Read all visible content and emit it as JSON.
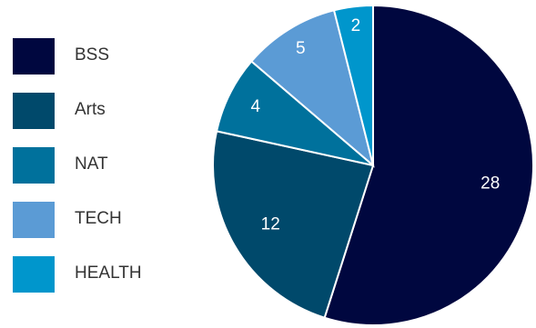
{
  "chart_data": {
    "type": "pie",
    "title": "",
    "legend_position": "left",
    "slices": [
      {
        "name": "BSS",
        "value": 28,
        "color": "#00073f"
      },
      {
        "name": "Arts",
        "value": 12,
        "color": "#00496b"
      },
      {
        "name": "NAT",
        "value": 4,
        "color": "#00719c"
      },
      {
        "name": "TECH",
        "value": 5,
        "color": "#5b9bd5"
      },
      {
        "name": "HEALTH",
        "value": 2,
        "color": "#0096cc"
      }
    ],
    "data_labels": [
      "28",
      "12",
      "4",
      "5",
      "2"
    ]
  },
  "legend": {
    "items": [
      {
        "label": "BSS"
      },
      {
        "label": "Arts"
      },
      {
        "label": "NAT"
      },
      {
        "label": "TECH"
      },
      {
        "label": "HEALTH"
      }
    ]
  }
}
